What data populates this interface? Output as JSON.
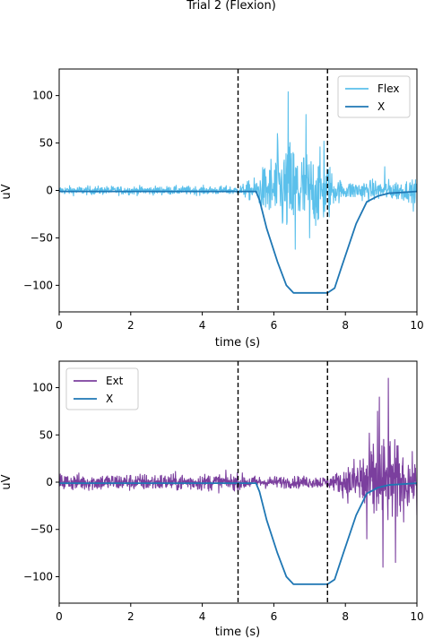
{
  "title": "Trial 2 (Flexion)",
  "chart_data": [
    {
      "type": "line",
      "xlabel": "time (s)",
      "ylabel": "uV",
      "xlim": [
        0,
        10
      ],
      "ylim": [
        -128,
        128
      ],
      "xticks": [
        0,
        2,
        4,
        6,
        8,
        10
      ],
      "yticks": [
        -100,
        -50,
        0,
        50,
        100
      ],
      "vlines": [
        5,
        7.5
      ],
      "legend": {
        "placement": "top-right",
        "entries": [
          "Flex",
          "X"
        ]
      },
      "series": [
        {
          "name": "Flex",
          "color": "#5bc0eb",
          "kind": "noise",
          "envelope": [
            [
              0,
              5
            ],
            [
              5,
              5
            ],
            [
              5.5,
              15
            ],
            [
              6,
              45
            ],
            [
              6.5,
              60
            ],
            [
              7,
              45
            ],
            [
              7.5,
              40
            ],
            [
              7.7,
              15
            ],
            [
              8,
              10
            ],
            [
              8.5,
              12
            ],
            [
              10,
              12
            ]
          ],
          "peaks": [
            [
              6.4,
              104
            ],
            [
              6.1,
              60
            ],
            [
              6.6,
              -62
            ],
            [
              6.9,
              80
            ],
            [
              7.0,
              -50
            ],
            [
              7.4,
              52
            ],
            [
              9.1,
              25
            ],
            [
              9.9,
              -22
            ]
          ]
        },
        {
          "name": "X",
          "color": "#1f77b4",
          "kind": "smooth",
          "points": [
            [
              0,
              -1
            ],
            [
              5.5,
              -1
            ],
            [
              5.6,
              -10
            ],
            [
              5.8,
              -40
            ],
            [
              6.1,
              -75
            ],
            [
              6.35,
              -100
            ],
            [
              6.55,
              -108
            ],
            [
              7.5,
              -108
            ],
            [
              7.7,
              -103
            ],
            [
              7.9,
              -80
            ],
            [
              8.3,
              -35
            ],
            [
              8.6,
              -12
            ],
            [
              8.9,
              -6
            ],
            [
              9.2,
              -3
            ],
            [
              10,
              -1
            ]
          ]
        }
      ]
    },
    {
      "type": "line",
      "xlabel": "time (s)",
      "ylabel": "uV",
      "xlim": [
        0,
        10
      ],
      "ylim": [
        -128,
        128
      ],
      "xticks": [
        0,
        2,
        4,
        6,
        8,
        10
      ],
      "yticks": [
        -100,
        -50,
        0,
        50,
        100
      ],
      "vlines": [
        5,
        7.5
      ],
      "legend": {
        "placement": "top-left",
        "entries": [
          "Ext",
          "X"
        ]
      },
      "series": [
        {
          "name": "Ext",
          "color": "#7b3f9e",
          "kind": "noise",
          "envelope": [
            [
              0,
              10
            ],
            [
              5,
              10
            ],
            [
              5.5,
              7
            ],
            [
              7.5,
              7
            ],
            [
              7.8,
              12
            ],
            [
              8.2,
              25
            ],
            [
              8.5,
              45
            ],
            [
              9,
              55
            ],
            [
              9.5,
              45
            ],
            [
              10,
              20
            ]
          ],
          "peaks": [
            [
              9.2,
              110
            ],
            [
              8.95,
              90
            ],
            [
              9.05,
              -90
            ],
            [
              8.9,
              75
            ],
            [
              9.4,
              -85
            ],
            [
              8.6,
              -60
            ],
            [
              10,
              -35
            ]
          ]
        },
        {
          "name": "X",
          "color": "#1f77b4",
          "kind": "smooth",
          "points": [
            [
              0,
              -1
            ],
            [
              5.5,
              -1
            ],
            [
              5.6,
              -10
            ],
            [
              5.8,
              -40
            ],
            [
              6.1,
              -75
            ],
            [
              6.35,
              -100
            ],
            [
              6.55,
              -108
            ],
            [
              7.5,
              -108
            ],
            [
              7.7,
              -103
            ],
            [
              7.9,
              -80
            ],
            [
              8.3,
              -35
            ],
            [
              8.6,
              -12
            ],
            [
              8.9,
              -6
            ],
            [
              9.2,
              -3
            ],
            [
              10,
              -1
            ]
          ]
        }
      ]
    }
  ]
}
